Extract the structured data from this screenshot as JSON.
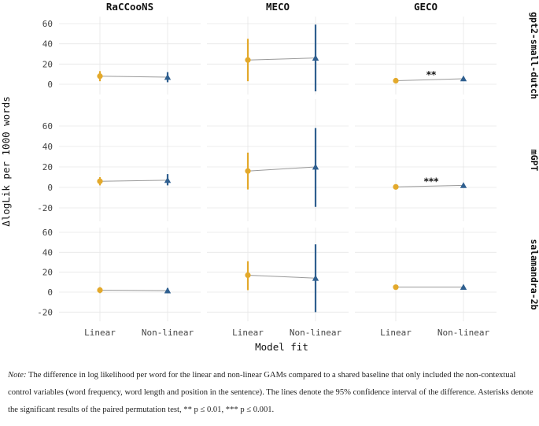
{
  "chart_data": {
    "type": "faceted-pointrange",
    "xlabel": "Model fit",
    "ylabel": "ΔlogLik per 1000 words",
    "categories": [
      "Linear",
      "Non-linear"
    ],
    "columns": [
      "RaCCooNS",
      "MECO",
      "GECO"
    ],
    "rows": [
      "gpt2-small-dutch",
      "mGPT",
      "salamandra-2b"
    ],
    "yticks": [
      -20,
      0,
      20,
      40,
      60
    ],
    "ylim": [
      -24,
      66
    ],
    "colors": {
      "Linear": "#e3a92b",
      "Non-linear": "#2f5f8f",
      "connector": "#999999",
      "grid": "#e6e6e6"
    },
    "panels": [
      {
        "row": "gpt2-small-dutch",
        "column": "RaCCooNS",
        "linear": {
          "mean": 8,
          "lo": 3,
          "hi": 13
        },
        "nonlinear": {
          "mean": 7,
          "lo": 2,
          "hi": 12
        },
        "sig": ""
      },
      {
        "row": "gpt2-small-dutch",
        "column": "MECO",
        "linear": {
          "mean": 24,
          "lo": 3,
          "hi": 45
        },
        "nonlinear": {
          "mean": 26,
          "lo": -7,
          "hi": 59
        },
        "sig": ""
      },
      {
        "row": "gpt2-small-dutch",
        "column": "GECO",
        "linear": {
          "mean": 3.5,
          "lo": 2.8,
          "hi": 4.2
        },
        "nonlinear": {
          "mean": 5.5,
          "lo": 4.8,
          "hi": 6.2
        },
        "sig": "**"
      },
      {
        "row": "mGPT",
        "column": "RaCCooNS",
        "linear": {
          "mean": 6,
          "lo": 2,
          "hi": 10
        },
        "nonlinear": {
          "mean": 7,
          "lo": 2,
          "hi": 13
        },
        "sig": ""
      },
      {
        "row": "mGPT",
        "column": "MECO",
        "linear": {
          "mean": 16,
          "lo": -2,
          "hi": 34
        },
        "nonlinear": {
          "mean": 20,
          "lo": -19,
          "hi": 58
        },
        "sig": ""
      },
      {
        "row": "mGPT",
        "column": "GECO",
        "linear": {
          "mean": 0.5,
          "lo": -0.2,
          "hi": 1.2
        },
        "nonlinear": {
          "mean": 2,
          "lo": 1.3,
          "hi": 2.7
        },
        "sig": "***"
      },
      {
        "row": "salamandra-2b",
        "column": "RaCCooNS",
        "linear": {
          "mean": 2,
          "lo": -1,
          "hi": 5
        },
        "nonlinear": {
          "mean": 1.5,
          "lo": -1,
          "hi": 4
        },
        "sig": ""
      },
      {
        "row": "salamandra-2b",
        "column": "MECO",
        "linear": {
          "mean": 17,
          "lo": 2,
          "hi": 31
        },
        "nonlinear": {
          "mean": 14,
          "lo": -20,
          "hi": 48
        },
        "sig": ""
      },
      {
        "row": "salamandra-2b",
        "column": "GECO",
        "linear": {
          "mean": 5,
          "lo": 4.3,
          "hi": 5.7
        },
        "nonlinear": {
          "mean": 5,
          "lo": 4.3,
          "hi": 5.7
        },
        "sig": ""
      }
    ]
  },
  "note": {
    "label": "Note:",
    "text": " The difference in log likelihood per word for the linear and non-linear GAMs compared to a shared baseline that only included the non-contextual control variables (word frequency, word length and position in the sentence). The lines denote the 95% confidence interval of the difference. Asterisks denote the significant results of the paired permutation test, ** p ≤ 0.01, *** p ≤ 0.001."
  }
}
